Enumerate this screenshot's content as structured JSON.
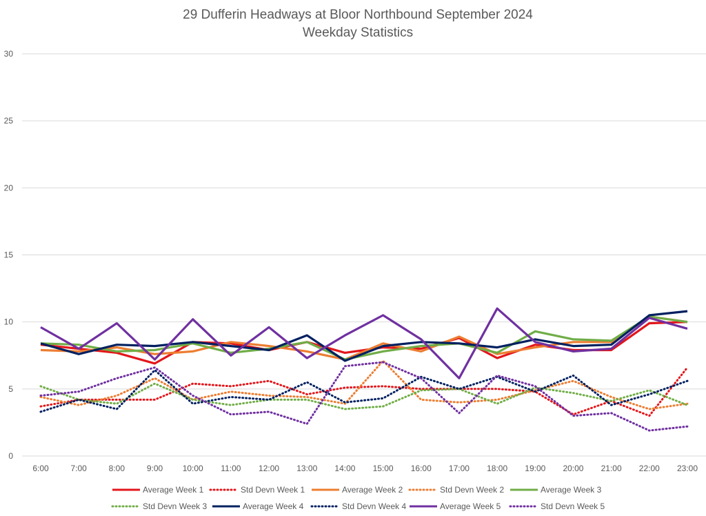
{
  "chart_data": {
    "type": "line",
    "title": "29 Dufferin Headways at Bloor Northbound September 2024",
    "subtitle": "Weekday Statistics",
    "xlabel": "",
    "ylabel": "",
    "ylim": [
      0,
      30
    ],
    "yticks": [
      0,
      5,
      10,
      15,
      20,
      25,
      30
    ],
    "grid": true,
    "legend_position": "bottom",
    "categories": [
      "6:00",
      "7:00",
      "8:00",
      "9:00",
      "10:00",
      "11:00",
      "12:00",
      "13:00",
      "14:00",
      "15:00",
      "16:00",
      "17:00",
      "18:00",
      "19:00",
      "20:00",
      "21:00",
      "22:00",
      "23:00"
    ],
    "series": [
      {
        "name": "Average Week 1",
        "color": "#e3161b",
        "style": "solid",
        "values": [
          8.3,
          8.0,
          7.7,
          6.9,
          8.5,
          8.4,
          7.9,
          8.5,
          7.7,
          8.1,
          8.0,
          8.8,
          7.3,
          8.3,
          7.9,
          7.9,
          9.9,
          10.0
        ]
      },
      {
        "name": "Std Devn Week 1",
        "color": "#e3161b",
        "style": "dotted",
        "values": [
          3.7,
          4.2,
          4.2,
          4.2,
          5.4,
          5.2,
          5.6,
          4.6,
          5.1,
          5.2,
          5.0,
          5.0,
          5.0,
          4.8,
          3.1,
          4.1,
          3.0,
          6.6
        ]
      },
      {
        "name": "Average Week 2",
        "color": "#ed7d31",
        "style": "solid",
        "values": [
          7.9,
          7.8,
          8.1,
          7.6,
          7.8,
          8.5,
          8.2,
          7.8,
          7.2,
          8.4,
          7.8,
          8.9,
          7.6,
          8.1,
          8.5,
          8.5,
          10.4,
          10.0
        ]
      },
      {
        "name": "Std Devn Week 2",
        "color": "#ed7d31",
        "style": "dotted",
        "values": [
          4.4,
          3.8,
          4.5,
          5.8,
          4.2,
          4.8,
          4.5,
          4.4,
          3.9,
          7.1,
          4.2,
          4.0,
          4.2,
          4.9,
          5.6,
          4.4,
          3.5,
          3.9
        ]
      },
      {
        "name": "Average Week 3",
        "color": "#70ad47",
        "style": "solid",
        "values": [
          8.4,
          8.3,
          7.8,
          7.9,
          8.4,
          7.7,
          8.0,
          8.5,
          7.2,
          7.8,
          8.2,
          8.4,
          7.7,
          9.3,
          8.7,
          8.6,
          10.4,
          10.0
        ]
      },
      {
        "name": "Std Devn Week 3",
        "color": "#70ad47",
        "style": "dotted",
        "values": [
          5.2,
          4.2,
          3.9,
          5.4,
          4.2,
          3.8,
          4.2,
          4.2,
          3.5,
          3.7,
          4.9,
          5.0,
          3.9,
          5.1,
          4.7,
          4.1,
          4.9,
          3.8
        ]
      },
      {
        "name": "Average Week 4",
        "color": "#002060",
        "style": "solid",
        "values": [
          8.4,
          7.6,
          8.3,
          8.2,
          8.5,
          8.2,
          7.9,
          9.0,
          7.1,
          8.2,
          8.5,
          8.4,
          8.1,
          8.7,
          8.2,
          8.3,
          10.5,
          10.8
        ]
      },
      {
        "name": "Std Devn Week 4",
        "color": "#002060",
        "style": "dotted",
        "values": [
          3.3,
          4.2,
          3.5,
          6.4,
          3.9,
          4.4,
          4.2,
          5.5,
          4.0,
          4.3,
          5.9,
          5.0,
          5.9,
          4.8,
          6.0,
          3.8,
          4.6,
          5.6
        ]
      },
      {
        "name": "Average Week 5",
        "color": "#7030a0",
        "style": "solid",
        "values": [
          9.6,
          8.0,
          9.9,
          7.2,
          10.2,
          7.5,
          9.6,
          7.3,
          9.0,
          10.5,
          8.7,
          5.8,
          11.0,
          8.5,
          7.8,
          8.0,
          10.3,
          9.5
        ]
      },
      {
        "name": "Std Devn Week 5",
        "color": "#7030a0",
        "style": "dotted",
        "values": [
          4.5,
          4.8,
          5.8,
          6.6,
          4.5,
          3.1,
          3.3,
          2.4,
          6.7,
          7.0,
          5.8,
          3.2,
          6.0,
          5.2,
          3.0,
          3.2,
          1.9,
          2.2
        ]
      }
    ]
  }
}
